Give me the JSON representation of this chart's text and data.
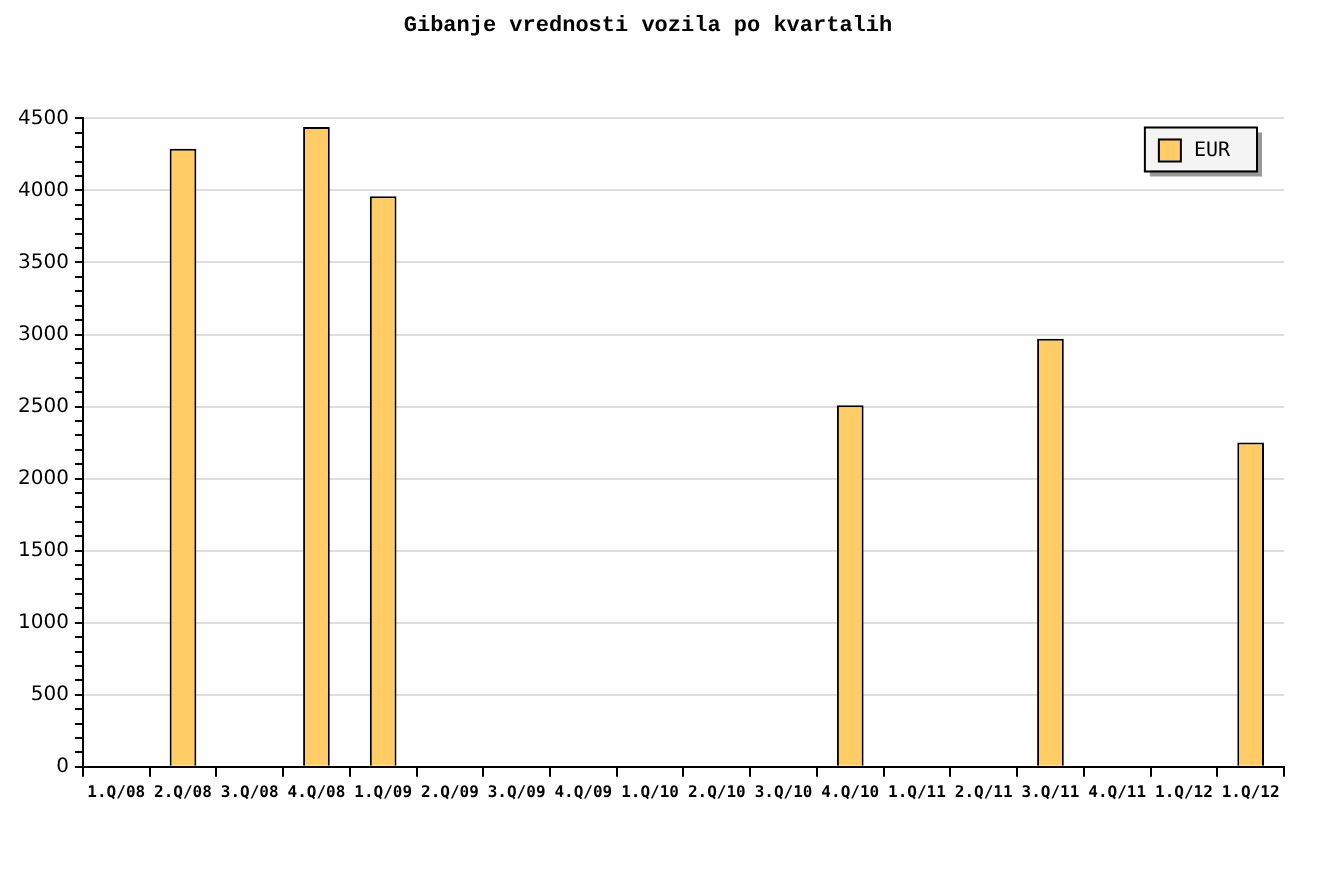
{
  "chart_data": {
    "type": "bar",
    "title": "Gibanje vrednosti vozila po kvartalih",
    "categories": [
      "1.Q/08",
      "2.Q/08",
      "3.Q/08",
      "4.Q/08",
      "1.Q/09",
      "2.Q/09",
      "3.Q/09",
      "4.Q/09",
      "1.Q/10",
      "2.Q/10",
      "3.Q/10",
      "4.Q/10",
      "1.Q/11",
      "2.Q/11",
      "3.Q/11",
      "4.Q/11",
      "1.Q/12",
      "1.Q/12"
    ],
    "series": [
      {
        "name": "EUR",
        "color": "#ffcc66",
        "values": [
          null,
          4290,
          null,
          4440,
          3960,
          null,
          null,
          null,
          null,
          null,
          null,
          2510,
          null,
          null,
          2970,
          null,
          null,
          2250
        ]
      }
    ],
    "ylim": [
      0,
      4500
    ],
    "yticks": [
      0,
      {
        "value": 100,
        "label": null
      },
      {
        "value": 200,
        "label": null
      },
      {
        "value": 300,
        "label": null
      },
      {
        "value": 400,
        "label": null
      },
      500,
      {
        "value": 600,
        "label": null
      },
      {
        "value": 700,
        "label": null
      },
      {
        "value": 800,
        "label": null
      },
      {
        "value": 900,
        "label": null
      },
      1000,
      {
        "value": 1100,
        "label": null
      },
      {
        "value": 1200,
        "label": null
      },
      {
        "value": 1300,
        "label": null
      },
      {
        "value": 1400,
        "label": null
      },
      1500,
      {
        "value": 1600,
        "label": null
      },
      {
        "value": 1700,
        "label": null
      },
      {
        "value": 1800,
        "label": null
      },
      {
        "value": 1900,
        "label": null
      },
      2000,
      {
        "value": 2100,
        "label": null
      },
      {
        "value": 2200,
        "label": null
      },
      {
        "value": 2300,
        "label": null
      },
      {
        "value": 2400,
        "label": null
      },
      2500,
      {
        "value": 2600,
        "label": null
      },
      {
        "value": 2700,
        "label": null
      },
      {
        "value": 2800,
        "label": null
      },
      {
        "value": 2900,
        "label": null
      },
      3000,
      {
        "value": 3100,
        "label": null
      },
      {
        "value": 3200,
        "label": null
      },
      {
        "value": 3300,
        "label": null
      },
      {
        "value": 3400,
        "label": null
      },
      3500,
      {
        "value": 3600,
        "label": null
      },
      {
        "value": 3700,
        "label": null
      },
      {
        "value": 3800,
        "label": null
      },
      {
        "value": 3900,
        "label": null
      },
      4000,
      {
        "value": 4100,
        "label": null
      },
      {
        "value": 4200,
        "label": null
      },
      {
        "value": 4300,
        "label": null
      },
      {
        "value": 4400,
        "label": null
      },
      4500
    ],
    "grid": "y",
    "legend": "top right"
  }
}
